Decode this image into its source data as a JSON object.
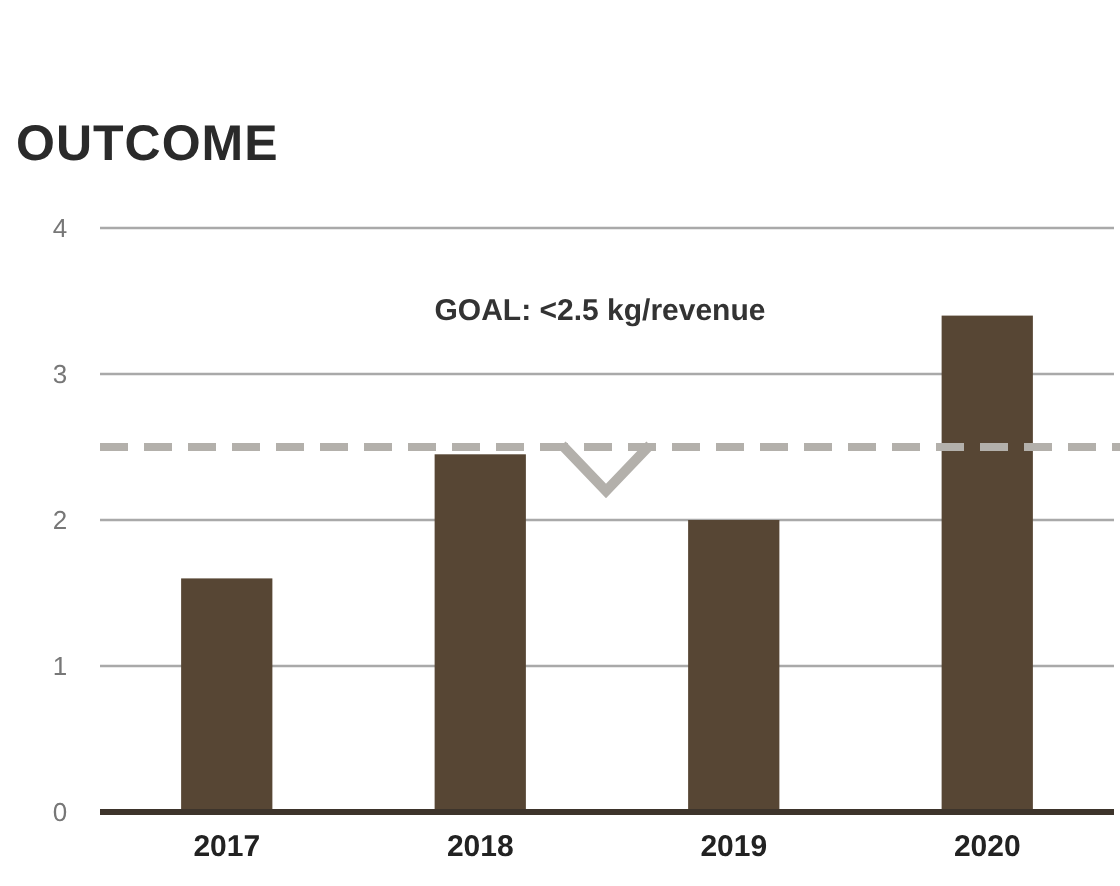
{
  "chart_data": {
    "type": "bar",
    "title": "OUTCOME",
    "categories": [
      "2017",
      "2018",
      "2019",
      "2020"
    ],
    "values": [
      1.6,
      2.45,
      2.0,
      3.4
    ],
    "color": "#574634",
    "ylim": [
      0,
      4
    ],
    "yticks": [
      0,
      1,
      2,
      3,
      4
    ],
    "grid": "y",
    "annotations": [
      "GOAL: <2.5 kg/revenue"
    ],
    "ref_lines": [
      {
        "axis": "y",
        "value": 2.5,
        "color": "#b3b0ab",
        "line_style": "dashed"
      }
    ]
  }
}
